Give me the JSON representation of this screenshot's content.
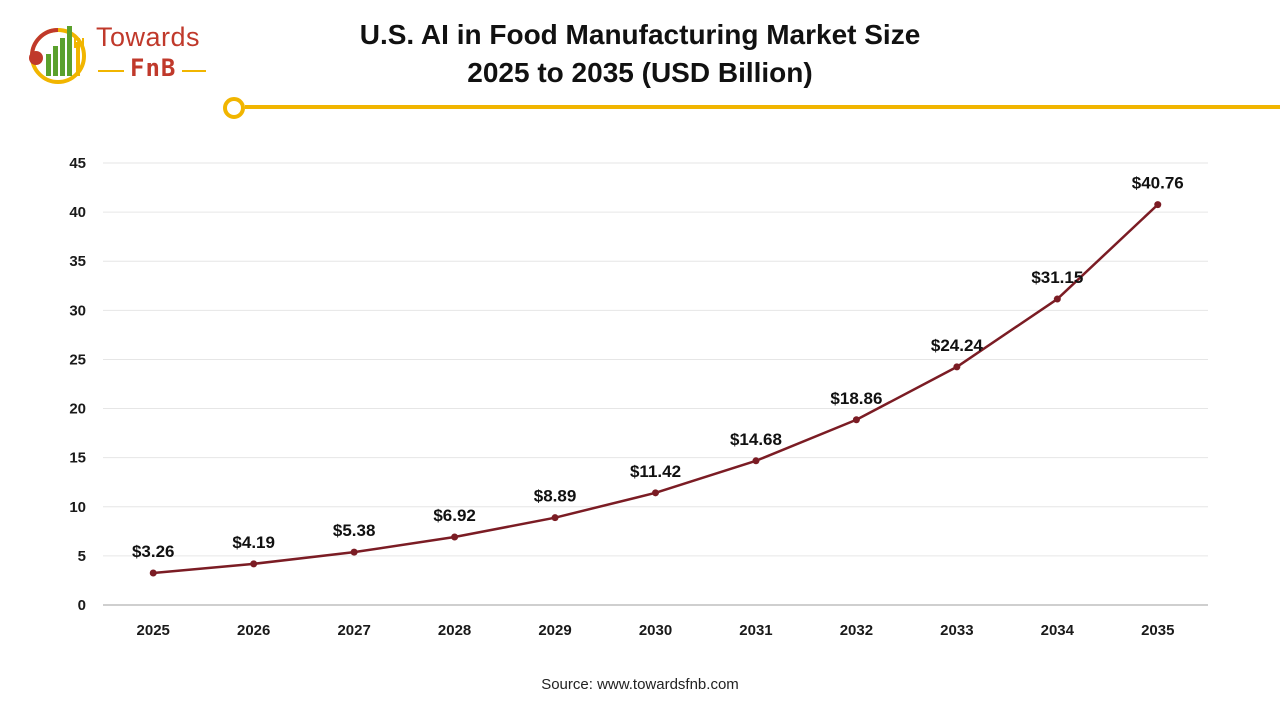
{
  "logo": {
    "top_text": "Towards",
    "bottom_text": "FnB"
  },
  "title": {
    "line1": "U.S. AI in Food Manufacturing Market Size",
    "line2": "2025 to 2035 (USD Billion)"
  },
  "source": "Source: www.towardsfnb.com",
  "colors": {
    "accent": "#f1b500",
    "brand": "#c0392b",
    "series": "#7b1c24",
    "gridline": "#e6e6e6",
    "axis": "#bfbfbf"
  },
  "chart_data": {
    "type": "line",
    "title": "U.S. AI in Food Manufacturing Market Size 2025 to 2035 (USD Billion)",
    "xlabel": "",
    "ylabel": "",
    "categories": [
      "2025",
      "2026",
      "2027",
      "2028",
      "2029",
      "2030",
      "2031",
      "2032",
      "2033",
      "2034",
      "2035"
    ],
    "values": [
      3.26,
      4.19,
      5.38,
      6.92,
      8.89,
      11.42,
      14.68,
      18.86,
      24.24,
      31.15,
      40.76
    ],
    "data_labels": [
      "$3.26",
      "$4.19",
      "$5.38",
      "$6.92",
      "$8.89",
      "$11.42",
      "$14.68",
      "$18.86",
      "$24.24",
      "$31.15",
      "$40.76"
    ],
    "ylim": [
      0,
      45
    ],
    "yticks": [
      "0",
      "5",
      "10",
      "15",
      "20",
      "25",
      "30",
      "35",
      "40",
      "45"
    ],
    "grid": true,
    "legend": "none"
  }
}
